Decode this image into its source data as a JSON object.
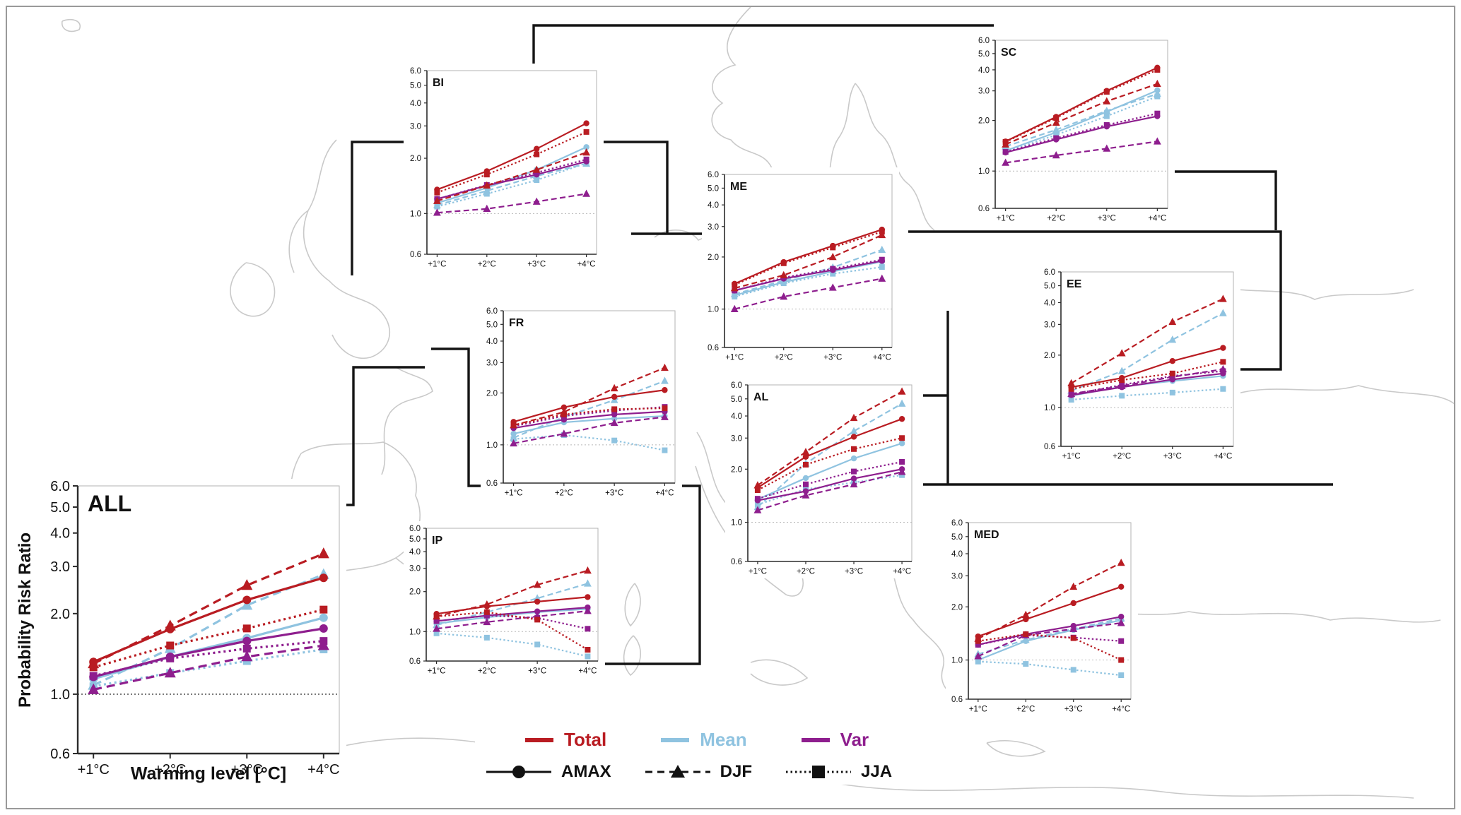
{
  "figure": {
    "ylabel": "Probability Risk Ratio",
    "xlabel": "Warming level [°C]",
    "x_ticks": [
      "+1°C",
      "+2°C",
      "+3°C",
      "+4°C"
    ],
    "y_ticks": [
      6.0,
      5.0,
      4.0,
      3.0,
      2.0,
      1.0,
      0.6
    ],
    "ylim": [
      0.6,
      6.0
    ],
    "yscale": "log",
    "reference_line": 1.0,
    "colors": {
      "total": "#b91c22",
      "mean": "#8fc3e0",
      "var": "#8e1e8e"
    }
  },
  "legend": {
    "total": "Total",
    "mean": "Mean",
    "var": "Var",
    "amax": "AMAX",
    "djf": "DJF",
    "jja": "JJA"
  },
  "chart_data": [
    {
      "region": "ALL",
      "type": "line",
      "series": [
        {
          "name": "Mean AMAX",
          "component": "mean",
          "season": "AMAX",
          "values": [
            1.14,
            1.38,
            1.62,
            1.93
          ]
        },
        {
          "name": "Mean DJF",
          "component": "mean",
          "season": "DJF",
          "values": [
            1.08,
            1.48,
            2.15,
            2.8
          ]
        },
        {
          "name": "Mean JJA",
          "component": "mean",
          "season": "JJA",
          "values": [
            1.07,
            1.2,
            1.33,
            1.47
          ]
        },
        {
          "name": "Var AMAX",
          "component": "var",
          "season": "AMAX",
          "values": [
            1.16,
            1.38,
            1.58,
            1.76
          ]
        },
        {
          "name": "Var DJF",
          "component": "var",
          "season": "DJF",
          "values": [
            1.04,
            1.2,
            1.38,
            1.52
          ]
        },
        {
          "name": "Var JJA",
          "component": "var",
          "season": "JJA",
          "values": [
            1.17,
            1.36,
            1.48,
            1.58
          ]
        },
        {
          "name": "Total AMAX",
          "component": "total",
          "season": "AMAX",
          "values": [
            1.32,
            1.75,
            2.25,
            2.72
          ]
        },
        {
          "name": "Total DJF",
          "component": "total",
          "season": "DJF",
          "values": [
            1.3,
            1.8,
            2.55,
            3.35
          ]
        },
        {
          "name": "Total JJA",
          "component": "total",
          "season": "JJA",
          "values": [
            1.26,
            1.52,
            1.76,
            2.07
          ]
        }
      ]
    },
    {
      "region": "BI",
      "type": "line",
      "series": [
        {
          "name": "Mean AMAX",
          "component": "mean",
          "season": "AMAX",
          "values": [
            1.14,
            1.38,
            1.73,
            2.3
          ]
        },
        {
          "name": "Mean DJF",
          "component": "mean",
          "season": "DJF",
          "values": [
            1.11,
            1.33,
            1.6,
            1.87
          ]
        },
        {
          "name": "Mean JJA",
          "component": "mean",
          "season": "JJA",
          "values": [
            1.09,
            1.28,
            1.52,
            1.88
          ]
        },
        {
          "name": "Var AMAX",
          "component": "var",
          "season": "AMAX",
          "values": [
            1.2,
            1.42,
            1.63,
            1.92
          ]
        },
        {
          "name": "Var DJF",
          "component": "var",
          "season": "DJF",
          "values": [
            1.01,
            1.06,
            1.16,
            1.28
          ]
        },
        {
          "name": "Var JJA",
          "component": "var",
          "season": "JJA",
          "values": [
            1.2,
            1.43,
            1.67,
            1.97
          ]
        },
        {
          "name": "Total AMAX",
          "component": "total",
          "season": "AMAX",
          "values": [
            1.35,
            1.7,
            2.25,
            3.1
          ]
        },
        {
          "name": "Total DJF",
          "component": "total",
          "season": "DJF",
          "values": [
            1.17,
            1.42,
            1.73,
            2.15
          ]
        },
        {
          "name": "Total JJA",
          "component": "total",
          "season": "JJA",
          "values": [
            1.3,
            1.63,
            2.1,
            2.78
          ]
        }
      ]
    },
    {
      "region": "FR",
      "type": "line",
      "series": [
        {
          "name": "Mean AMAX",
          "component": "mean",
          "season": "AMAX",
          "values": [
            1.16,
            1.35,
            1.42,
            1.47
          ]
        },
        {
          "name": "Mean DJF",
          "component": "mean",
          "season": "DJF",
          "values": [
            1.1,
            1.45,
            1.82,
            2.35
          ]
        },
        {
          "name": "Mean JJA",
          "component": "mean",
          "season": "JJA",
          "values": [
            1.08,
            1.14,
            1.06,
            0.93
          ]
        },
        {
          "name": "Var AMAX",
          "component": "var",
          "season": "AMAX",
          "values": [
            1.25,
            1.4,
            1.5,
            1.56
          ]
        },
        {
          "name": "Var DJF",
          "component": "var",
          "season": "DJF",
          "values": [
            1.02,
            1.16,
            1.34,
            1.45
          ]
        },
        {
          "name": "Var JJA",
          "component": "var",
          "season": "JJA",
          "values": [
            1.28,
            1.47,
            1.58,
            1.66
          ]
        },
        {
          "name": "Total AMAX",
          "component": "total",
          "season": "AMAX",
          "values": [
            1.36,
            1.65,
            1.9,
            2.08
          ]
        },
        {
          "name": "Total DJF",
          "component": "total",
          "season": "DJF",
          "values": [
            1.3,
            1.55,
            2.13,
            2.8
          ]
        },
        {
          "name": "Total JJA",
          "component": "total",
          "season": "JJA",
          "values": [
            1.3,
            1.5,
            1.61,
            1.63
          ]
        }
      ]
    },
    {
      "region": "IP",
      "type": "line",
      "series": [
        {
          "name": "Mean AMAX",
          "component": "mean",
          "season": "AMAX",
          "values": [
            1.15,
            1.28,
            1.4,
            1.48
          ]
        },
        {
          "name": "Mean DJF",
          "component": "mean",
          "season": "DJF",
          "values": [
            1.12,
            1.4,
            1.78,
            2.3
          ]
        },
        {
          "name": "Mean JJA",
          "component": "mean",
          "season": "JJA",
          "values": [
            0.97,
            0.9,
            0.8,
            0.65
          ]
        },
        {
          "name": "Var AMAX",
          "component": "var",
          "season": "AMAX",
          "values": [
            1.2,
            1.32,
            1.42,
            1.52
          ]
        },
        {
          "name": "Var DJF",
          "component": "var",
          "season": "DJF",
          "values": [
            1.05,
            1.18,
            1.3,
            1.43
          ]
        },
        {
          "name": "Var JJA",
          "component": "var",
          "season": "JJA",
          "values": [
            1.2,
            1.32,
            1.27,
            1.05
          ]
        },
        {
          "name": "Total AMAX",
          "component": "total",
          "season": "AMAX",
          "values": [
            1.36,
            1.55,
            1.68,
            1.82
          ]
        },
        {
          "name": "Total DJF",
          "component": "total",
          "season": "DJF",
          "values": [
            1.3,
            1.6,
            2.25,
            2.88
          ]
        },
        {
          "name": "Total JJA",
          "component": "total",
          "season": "JJA",
          "values": [
            1.3,
            1.4,
            1.23,
            0.73
          ]
        }
      ]
    },
    {
      "region": "ME",
      "type": "line",
      "series": [
        {
          "name": "Mean AMAX",
          "component": "mean",
          "season": "AMAX",
          "values": [
            1.2,
            1.43,
            1.65,
            1.88
          ]
        },
        {
          "name": "Mean DJF",
          "component": "mean",
          "season": "DJF",
          "values": [
            1.22,
            1.46,
            1.74,
            2.2
          ]
        },
        {
          "name": "Mean JJA",
          "component": "mean",
          "season": "JJA",
          "values": [
            1.18,
            1.41,
            1.6,
            1.75
          ]
        },
        {
          "name": "Var AMAX",
          "component": "var",
          "season": "AMAX",
          "values": [
            1.28,
            1.5,
            1.68,
            1.9
          ]
        },
        {
          "name": "Var DJF",
          "component": "var",
          "season": "DJF",
          "values": [
            1.0,
            1.18,
            1.33,
            1.5
          ]
        },
        {
          "name": "Var JJA",
          "component": "var",
          "season": "JJA",
          "values": [
            1.28,
            1.52,
            1.71,
            1.93
          ]
        },
        {
          "name": "Total AMAX",
          "component": "total",
          "season": "AMAX",
          "values": [
            1.4,
            1.87,
            2.32,
            2.88
          ]
        },
        {
          "name": "Total DJF",
          "component": "total",
          "season": "DJF",
          "values": [
            1.32,
            1.57,
            2.0,
            2.68
          ]
        },
        {
          "name": "Total JJA",
          "component": "total",
          "season": "JJA",
          "values": [
            1.38,
            1.84,
            2.27,
            2.8
          ]
        }
      ]
    },
    {
      "region": "SC",
      "type": "line",
      "series": [
        {
          "name": "Mean AMAX",
          "component": "mean",
          "season": "AMAX",
          "values": [
            1.32,
            1.7,
            2.25,
            3.02
          ]
        },
        {
          "name": "Mean DJF",
          "component": "mean",
          "season": "DJF",
          "values": [
            1.4,
            1.76,
            2.28,
            2.88
          ]
        },
        {
          "name": "Mean JJA",
          "component": "mean",
          "season": "JJA",
          "values": [
            1.3,
            1.64,
            2.12,
            2.78
          ]
        },
        {
          "name": "Var AMAX",
          "component": "var",
          "season": "AMAX",
          "values": [
            1.29,
            1.54,
            1.84,
            2.12
          ]
        },
        {
          "name": "Var DJF",
          "component": "var",
          "season": "DJF",
          "values": [
            1.12,
            1.24,
            1.36,
            1.5
          ]
        },
        {
          "name": "Var JJA",
          "component": "var",
          "season": "JJA",
          "values": [
            1.3,
            1.57,
            1.88,
            2.2
          ]
        },
        {
          "name": "Total AMAX",
          "component": "total",
          "season": "AMAX",
          "values": [
            1.5,
            2.1,
            3.0,
            4.12
          ]
        },
        {
          "name": "Total DJF",
          "component": "total",
          "season": "DJF",
          "values": [
            1.44,
            1.94,
            2.6,
            3.3
          ]
        },
        {
          "name": "Total JJA",
          "component": "total",
          "season": "JJA",
          "values": [
            1.49,
            2.07,
            2.96,
            4.0
          ]
        }
      ]
    },
    {
      "region": "EE",
      "type": "line",
      "series": [
        {
          "name": "Mean AMAX",
          "component": "mean",
          "season": "AMAX",
          "values": [
            1.17,
            1.32,
            1.42,
            1.52
          ]
        },
        {
          "name": "Mean DJF",
          "component": "mean",
          "season": "DJF",
          "values": [
            1.25,
            1.62,
            2.45,
            3.48
          ]
        },
        {
          "name": "Mean JJA",
          "component": "mean",
          "season": "JJA",
          "values": [
            1.11,
            1.17,
            1.22,
            1.28
          ]
        },
        {
          "name": "Var AMAX",
          "component": "var",
          "season": "AMAX",
          "values": [
            1.18,
            1.31,
            1.45,
            1.57
          ]
        },
        {
          "name": "Var DJF",
          "component": "var",
          "season": "DJF",
          "values": [
            1.2,
            1.33,
            1.5,
            1.66
          ]
        },
        {
          "name": "Var JJA",
          "component": "var",
          "season": "JJA",
          "values": [
            1.19,
            1.35,
            1.52,
            1.62
          ]
        },
        {
          "name": "Total AMAX",
          "component": "total",
          "season": "AMAX",
          "values": [
            1.31,
            1.48,
            1.85,
            2.2
          ]
        },
        {
          "name": "Total DJF",
          "component": "total",
          "season": "DJF",
          "values": [
            1.38,
            2.05,
            3.1,
            4.2
          ]
        },
        {
          "name": "Total JJA",
          "component": "total",
          "season": "JJA",
          "values": [
            1.28,
            1.44,
            1.57,
            1.83
          ]
        }
      ]
    },
    {
      "region": "AL",
      "type": "line",
      "series": [
        {
          "name": "Mean AMAX",
          "component": "mean",
          "season": "AMAX",
          "values": [
            1.35,
            1.78,
            2.3,
            2.8
          ]
        },
        {
          "name": "Mean DJF",
          "component": "mean",
          "season": "DJF",
          "values": [
            1.22,
            2.15,
            3.28,
            4.7
          ]
        },
        {
          "name": "Mean JJA",
          "component": "mean",
          "season": "JJA",
          "values": [
            1.26,
            1.54,
            1.68,
            1.85
          ]
        },
        {
          "name": "Var AMAX",
          "component": "var",
          "season": "AMAX",
          "values": [
            1.33,
            1.5,
            1.77,
            2.0
          ]
        },
        {
          "name": "Var DJF",
          "component": "var",
          "season": "DJF",
          "values": [
            1.17,
            1.42,
            1.64,
            1.93
          ]
        },
        {
          "name": "Var JJA",
          "component": "var",
          "season": "JJA",
          "values": [
            1.36,
            1.64,
            1.94,
            2.2
          ]
        },
        {
          "name": "Total AMAX",
          "component": "total",
          "season": "AMAX",
          "values": [
            1.57,
            2.35,
            3.05,
            3.85
          ]
        },
        {
          "name": "Total DJF",
          "component": "total",
          "season": "DJF",
          "values": [
            1.62,
            2.5,
            3.9,
            5.5
          ]
        },
        {
          "name": "Total JJA",
          "component": "total",
          "season": "JJA",
          "values": [
            1.52,
            2.12,
            2.6,
            3.0
          ]
        }
      ]
    },
    {
      "region": "MED",
      "type": "line",
      "series": [
        {
          "name": "Mean AMAX",
          "component": "mean",
          "season": "AMAX",
          "values": [
            1.0,
            1.28,
            1.48,
            1.68
          ]
        },
        {
          "name": "Mean DJF",
          "component": "mean",
          "season": "DJF",
          "values": [
            1.08,
            1.3,
            1.5,
            1.72
          ]
        },
        {
          "name": "Mean JJA",
          "component": "mean",
          "season": "JJA",
          "values": [
            0.98,
            0.95,
            0.88,
            0.82
          ]
        },
        {
          "name": "Var AMAX",
          "component": "var",
          "season": "AMAX",
          "values": [
            1.22,
            1.4,
            1.56,
            1.76
          ]
        },
        {
          "name": "Var DJF",
          "component": "var",
          "season": "DJF",
          "values": [
            1.05,
            1.38,
            1.5,
            1.62
          ]
        },
        {
          "name": "Var JJA",
          "component": "var",
          "season": "JJA",
          "values": [
            1.22,
            1.38,
            1.34,
            1.28
          ]
        },
        {
          "name": "Total AMAX",
          "component": "total",
          "season": "AMAX",
          "values": [
            1.36,
            1.7,
            2.1,
            2.6
          ]
        },
        {
          "name": "Total DJF",
          "component": "total",
          "season": "DJF",
          "values": [
            1.32,
            1.8,
            2.6,
            3.55
          ]
        },
        {
          "name": "Total JJA",
          "component": "total",
          "season": "JJA",
          "values": [
            1.28,
            1.4,
            1.33,
            1.0
          ]
        }
      ]
    }
  ]
}
